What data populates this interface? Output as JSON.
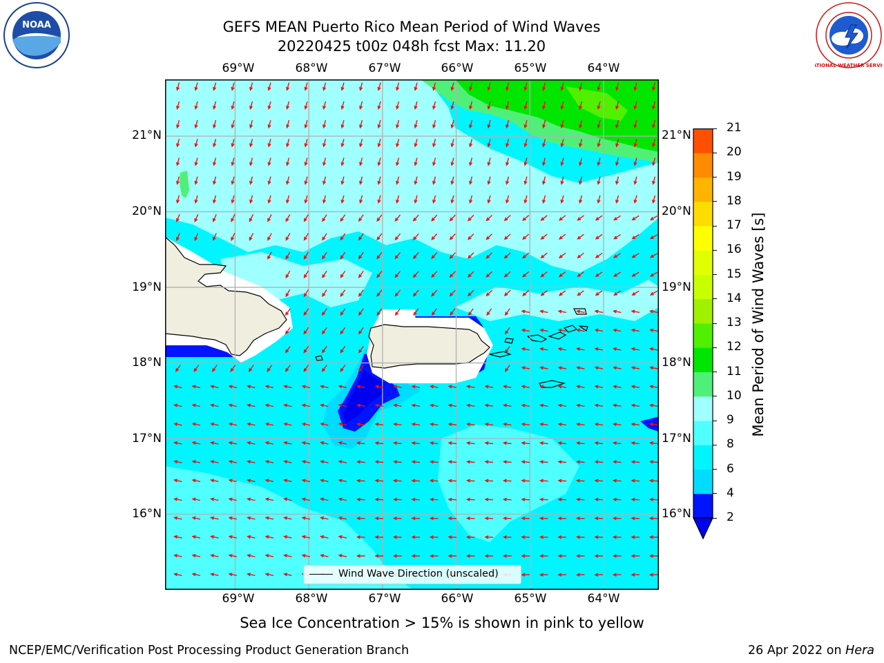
{
  "title": {
    "line1": "GEFS MEAN Puerto Rico Mean Period of Wind Waves",
    "line2": "20220425 t00z 048h fcst   Max: 11.20"
  },
  "axes": {
    "lon_labels": [
      "69°W",
      "68°W",
      "67°W",
      "66°W",
      "65°W",
      "64°W"
    ],
    "lat_labels": [
      "21°N",
      "20°N",
      "19°N",
      "18°N",
      "17°N",
      "16°N"
    ],
    "lon_values": [
      -69,
      -68,
      -67,
      -66,
      -65,
      -64
    ],
    "lat_values": [
      21,
      20,
      19,
      18,
      17,
      16
    ],
    "lon_range": [
      -69.95,
      -63.25
    ],
    "lat_range": [
      15.0,
      21.75
    ]
  },
  "legend": {
    "label": "Wind Wave Direction (unscaled)"
  },
  "colorbar": {
    "label": "Mean Period of Wind Waves [s]",
    "ticks": [
      "2",
      "4",
      "6",
      "8",
      "9",
      "10",
      "11",
      "12",
      "13",
      "14",
      "15",
      "16",
      "17",
      "18",
      "19",
      "20",
      "21"
    ],
    "levels": [
      2,
      4,
      6,
      8,
      9,
      10,
      11,
      12,
      13,
      14,
      15,
      16,
      17,
      18,
      19,
      20,
      21
    ],
    "colors": [
      "#0014ff",
      "#00dcff",
      "#00f5ff",
      "#50ffff",
      "#a0ffff",
      "#50f078",
      "#00e600",
      "#50f000",
      "#a0f000",
      "#c8ff00",
      "#e1ff00",
      "#ffff00",
      "#ffdc00",
      "#ffb400",
      "#ff8c00",
      "#ff5000",
      "#ff1e00",
      "#ff0000"
    ],
    "under_color": "#0000f0",
    "extend": "min"
  },
  "map_colors": {
    "land": "#efeedf",
    "coast": "#000000",
    "arrow": "#ee1111",
    "grid": "#b0b0b0",
    "purple_blue": "#0000e6"
  },
  "notes": {
    "sea_ice": "Sea Ice Concentration > 15% is shown in pink to yellow"
  },
  "footer": {
    "left": "NCEP/EMC/Verification Post Processing Product Generation Branch",
    "right_date": "26 Apr 2022 on",
    "right_host": "Hera"
  },
  "logos": {
    "left_text": "NOAA",
    "right_text": "NATIONAL WEATHER SERVICE"
  }
}
